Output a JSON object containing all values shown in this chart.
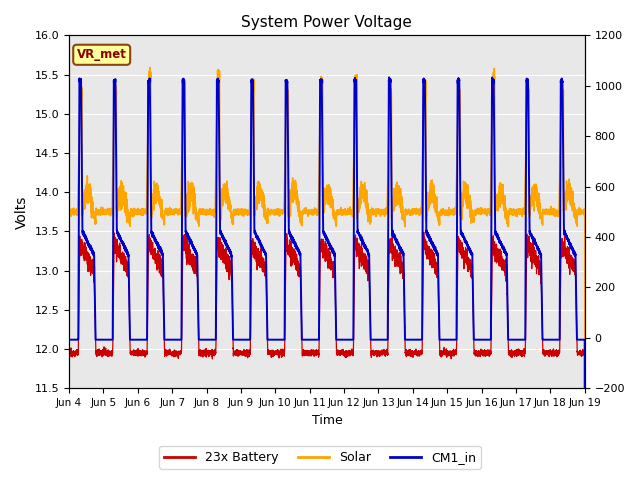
{
  "title": "System Power Voltage",
  "xlabel": "Time",
  "ylabel_left": "Volts",
  "ylim_left": [
    11.5,
    16.0
  ],
  "ylim_right": [
    -200,
    1200
  ],
  "yticks_left": [
    11.5,
    12.0,
    12.5,
    13.0,
    13.5,
    14.0,
    14.5,
    15.0,
    15.5,
    16.0
  ],
  "yticks_right": [
    -200,
    0,
    200,
    400,
    600,
    800,
    1000,
    1200
  ],
  "x_labels": [
    "Jun 4",
    "Jun 5",
    "Jun 6",
    "Jun 7",
    "Jun 8",
    "Jun 9",
    "Jun 10",
    "Jun 11",
    "Jun 12",
    "Jun 13",
    "Jun 14",
    "Jun 15",
    "Jun 16",
    "Jun 17",
    "Jun 18",
    "Jun 19"
  ],
  "annotation_text": "VR_met",
  "color_battery": "#cc0000",
  "color_solar": "#ffa500",
  "color_cm1": "#0000cc",
  "legend_labels": [
    "23x Battery",
    "Solar",
    "CM1_in"
  ],
  "background_color": "#e8e8e8",
  "n_days": 15
}
